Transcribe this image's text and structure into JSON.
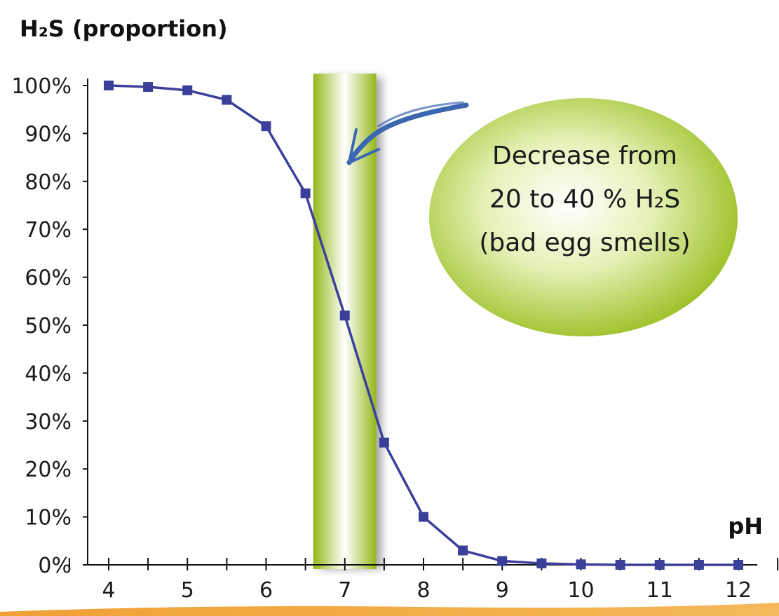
{
  "chart_data": {
    "type": "line",
    "ylabel": "H₂S (proportion)",
    "xlabel": "pH",
    "x_ticks": [
      "4",
      "5",
      "6",
      "7",
      "8",
      "9",
      "10",
      "11",
      "12"
    ],
    "y_ticks": [
      "0%",
      "10%",
      "20%",
      "30%",
      "40%",
      "50%",
      "60%",
      "70%",
      "80%",
      "90%",
      "100%"
    ],
    "xlim": [
      4,
      12
    ],
    "ylim": [
      0,
      100
    ],
    "series": [
      {
        "color": "#3a3f9a",
        "marker": "square",
        "x": [
          4,
          4.5,
          5,
          5.5,
          6,
          6.5,
          7,
          7.5,
          8,
          8.5,
          9,
          9.5,
          10,
          10.5,
          11,
          11.5,
          12
        ],
        "y": [
          100,
          99.7,
          99,
          97,
          91.5,
          77.5,
          52,
          25.5,
          10,
          3,
          0.8,
          0.3,
          0.1,
          0,
          0,
          0,
          0
        ]
      }
    ],
    "highlight_band": {
      "x_range": [
        6.6,
        7.4
      ],
      "color": "#9fc31f"
    },
    "annotation": {
      "lines": [
        "Decrease from",
        "20 to 40 % H₂S",
        "(bad egg smells)"
      ],
      "bubble_color": "#9fc31f",
      "arrow_color": "#3b66b0"
    },
    "bottom_stripe_color": "#f0a035",
    "grid": false
  }
}
